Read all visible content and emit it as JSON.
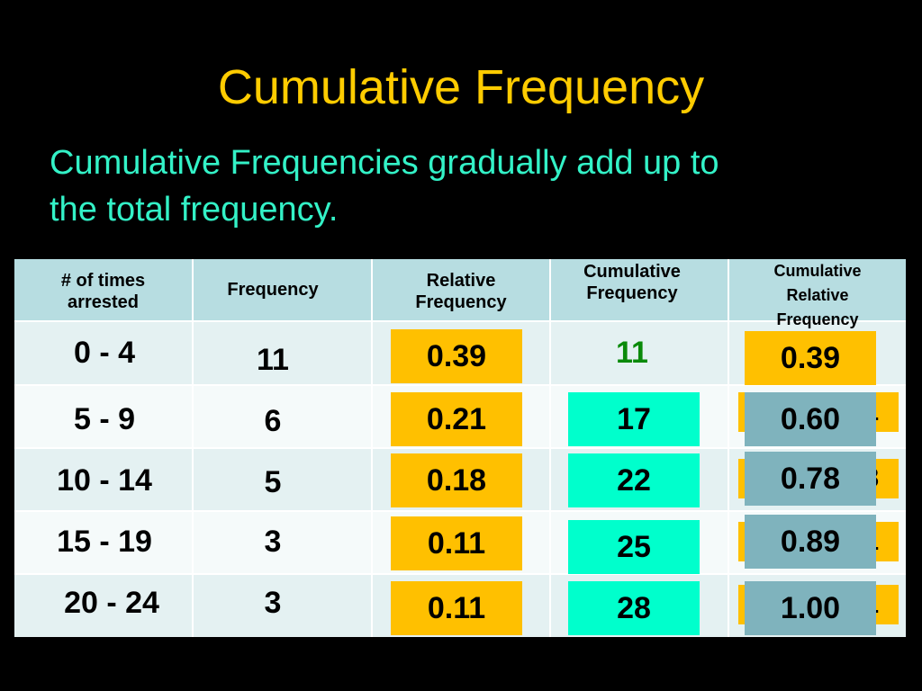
{
  "slide": {
    "title": "Cumulative Frequency",
    "subtitle_line1": "Cumulative Frequencies gradually add up to",
    "subtitle_line2": "the total frequency."
  },
  "table": {
    "headers": {
      "interval_line1": "# of times",
      "interval_line2": "arrested",
      "frequency": "Frequency",
      "relative_line1": "Relative",
      "relative_line2": "Frequency",
      "cumulative_line1": "Cumulative",
      "cumulative_line2": "Frequency",
      "cum_rel_line1": "Cumulative",
      "cum_rel_line2": "Relative",
      "cum_rel_line3": "Frequency"
    },
    "rows": [
      {
        "interval": "0 - 4",
        "frequency": "11",
        "relative": "0.39",
        "cumulative": "11",
        "cum_relative": "0.39",
        "hidden_fragment": ""
      },
      {
        "interval": "5 - 9",
        "frequency": "6",
        "relative": "0.21",
        "cumulative": "17",
        "cum_relative": "0.60",
        "hidden_fragment": "1"
      },
      {
        "interval": "10 - 14",
        "frequency": "5",
        "relative": "0.18",
        "cumulative": "22",
        "cum_relative": "0.78",
        "hidden_fragment": "8"
      },
      {
        "interval": "15 - 19",
        "frequency": "3",
        "relative": "0.11",
        "cumulative": "25",
        "cum_relative": "0.89",
        "hidden_fragment": "1"
      },
      {
        "interval": "20 - 24",
        "frequency": "3",
        "relative": "0.11",
        "cumulative": "28",
        "cum_relative": "1.00",
        "hidden_fragment": "1"
      }
    ]
  },
  "colors": {
    "title": "#ffcc00",
    "subtitle": "#33f2c7",
    "orange_box": "#ffc000",
    "teal_box": "#00ffcc",
    "gray_box": "#7fb3bd",
    "green_text": "#0a8a0a"
  }
}
